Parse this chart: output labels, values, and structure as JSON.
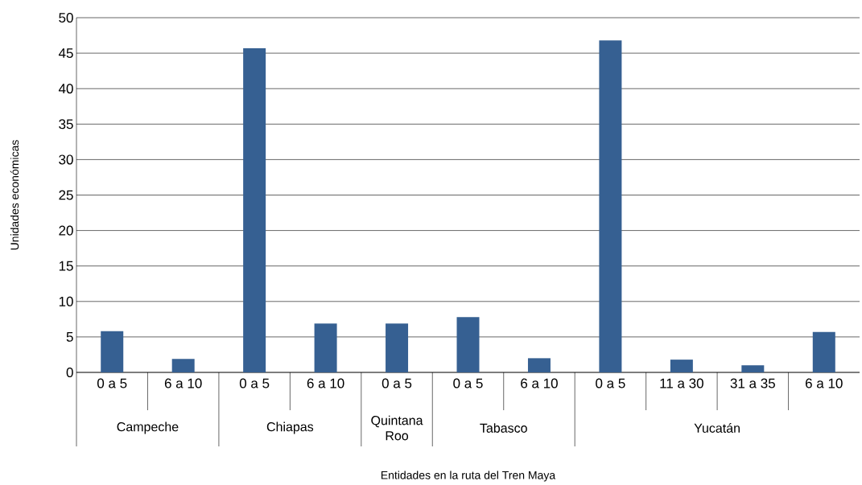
{
  "chart_data": {
    "type": "bar",
    "categories": [
      "0 a 5",
      "6 a 10",
      "0 a 5",
      "6 a 10",
      "0 a 5",
      "0 a 5",
      "6 a 10",
      "0 a 5",
      "11 a 30",
      "31 a 35",
      "6 a 10"
    ],
    "values": [
      5.8,
      1.9,
      45.7,
      6.9,
      6.9,
      7.8,
      2.0,
      46.8,
      1.8,
      1.0,
      5.7
    ],
    "color": "#366092",
    "ylim": [
      0,
      50
    ],
    "yticks": [
      0,
      5,
      10,
      15,
      20,
      25,
      30,
      35,
      40,
      45,
      50
    ],
    "grid": "y",
    "ylabel": "Unidades económicas",
    "annotations": [
      "Campeche",
      "Chiapas",
      "Quintana Roo",
      "Tabasco",
      "Yucatán",
      "Entidades en la ruta del Tren Maya"
    ]
  }
}
